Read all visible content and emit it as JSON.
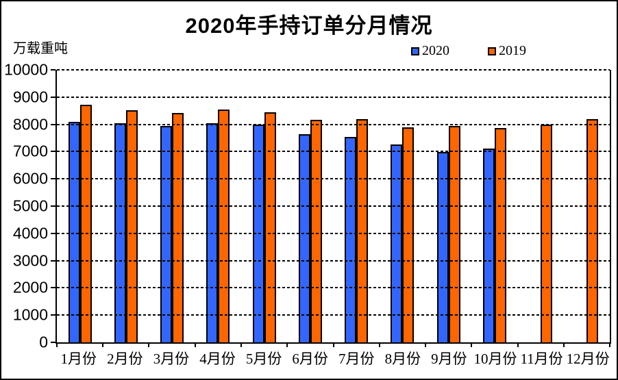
{
  "title": "2020年手持订单分月情况",
  "y_unit_label": "万载重吨",
  "legend": {
    "items": [
      {
        "label": "2020",
        "color": "#3366FF"
      },
      {
        "label": "2019",
        "color": "#FF6600"
      }
    ]
  },
  "colors": {
    "series_2020": "#3366FF",
    "series_2019": "#FF6600",
    "bar_outline": "#000000",
    "text": "#000000",
    "background": "#FFFFFF"
  },
  "chart_data": {
    "type": "bar",
    "title": "2020年手持订单分月情况",
    "ylabel": "万载重吨",
    "xlabel": "",
    "categories": [
      "1月份",
      "2月份",
      "3月份",
      "4月份",
      "5月份",
      "6月份",
      "7月份",
      "8月份",
      "9月份",
      "10月份",
      "11月份",
      "12月份"
    ],
    "series": [
      {
        "name": "2020",
        "color": "#3366FF",
        "values": [
          8100,
          8030,
          7950,
          8050,
          8000,
          7650,
          7550,
          7250,
          6990,
          7100,
          null,
          null
        ]
      },
      {
        "name": "2019",
        "color": "#FF6600",
        "values": [
          8720,
          8520,
          8430,
          8550,
          8440,
          8170,
          8200,
          7900,
          7950,
          7870,
          8000,
          8190
        ]
      }
    ],
    "ylim": [
      0,
      10000
    ],
    "yticks": [
      0,
      1000,
      2000,
      3000,
      4000,
      5000,
      6000,
      7000,
      8000,
      9000,
      10000
    ],
    "grid": "horizontal-dashed",
    "legend_position": "top-right-above-plot"
  }
}
